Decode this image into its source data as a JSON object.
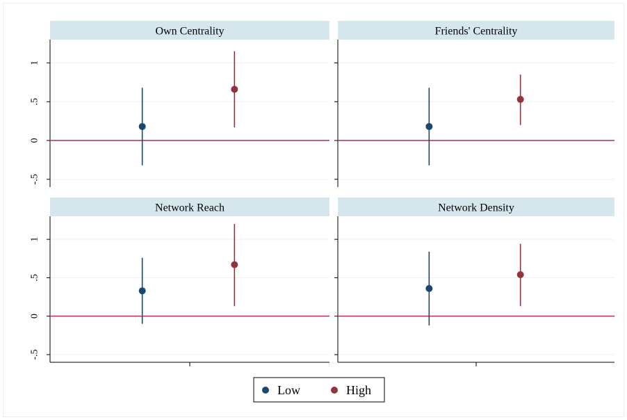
{
  "chart_data": {
    "type": "scatter",
    "subtype": "coefficient-plot",
    "y_ticks": [
      {
        "value": -0.5,
        "label": "-.5"
      },
      {
        "value": 0,
        "label": "0"
      },
      {
        "value": 0.5,
        "label": ".5"
      },
      {
        "value": 1,
        "label": "1"
      }
    ],
    "ylim": [
      -0.6,
      1.3
    ],
    "grid": true,
    "reference_line": 0,
    "legend_position": "bottom",
    "legend": [
      {
        "name": "Low",
        "color": "#1a476f"
      },
      {
        "name": "High",
        "color": "#90353b"
      }
    ],
    "reference_line_color": "#b0304f",
    "strip_color": "#d5e6ec",
    "panels": [
      {
        "title": "Own Centrality",
        "series": [
          {
            "name": "Low",
            "estimate": 0.18,
            "ci": [
              -0.32,
              0.68
            ]
          },
          {
            "name": "High",
            "estimate": 0.66,
            "ci": [
              0.17,
              1.15
            ]
          }
        ]
      },
      {
        "title": "Friends' Centrality",
        "series": [
          {
            "name": "Low",
            "estimate": 0.18,
            "ci": [
              -0.32,
              0.68
            ]
          },
          {
            "name": "High",
            "estimate": 0.53,
            "ci": [
              0.2,
              0.85
            ]
          }
        ]
      },
      {
        "title": "Network Reach",
        "series": [
          {
            "name": "Low",
            "estimate": 0.33,
            "ci": [
              -0.1,
              0.76
            ]
          },
          {
            "name": "High",
            "estimate": 0.67,
            "ci": [
              0.13,
              1.2
            ]
          }
        ]
      },
      {
        "title": "Network Density",
        "series": [
          {
            "name": "Low",
            "estimate": 0.36,
            "ci": [
              -0.12,
              0.84
            ]
          },
          {
            "name": "High",
            "estimate": 0.54,
            "ci": [
              0.13,
              0.94
            ]
          }
        ]
      }
    ]
  }
}
